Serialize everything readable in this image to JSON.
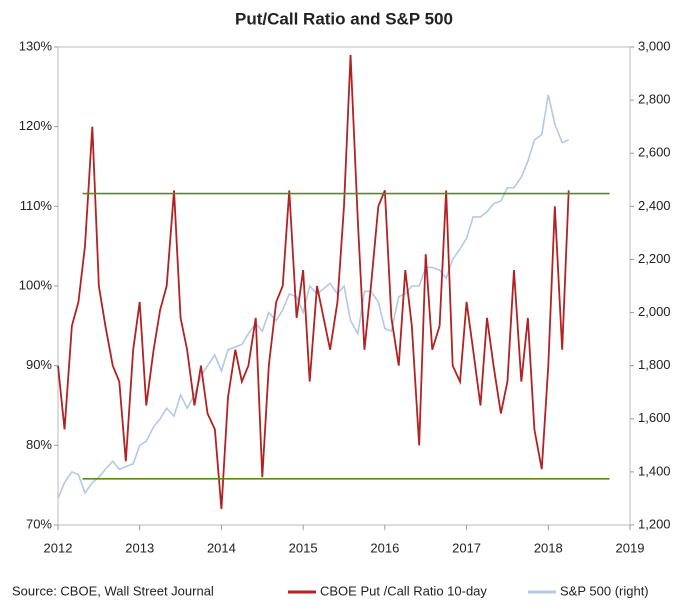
{
  "chart_data": {
    "type": "line",
    "title": "Put/Call Ratio and S&P 500",
    "source": "Source: CBOE, Wall Street Journal",
    "x": [
      2012.0,
      2012.08,
      2012.17,
      2012.25,
      2012.33,
      2012.42,
      2012.5,
      2012.58,
      2012.67,
      2012.75,
      2012.83,
      2012.92,
      2013.0,
      2013.08,
      2013.17,
      2013.25,
      2013.33,
      2013.42,
      2013.5,
      2013.58,
      2013.67,
      2013.75,
      2013.83,
      2013.92,
      2014.0,
      2014.08,
      2014.17,
      2014.25,
      2014.33,
      2014.42,
      2014.5,
      2014.58,
      2014.67,
      2014.75,
      2014.83,
      2014.92,
      2015.0,
      2015.08,
      2015.17,
      2015.25,
      2015.33,
      2015.42,
      2015.5,
      2015.58,
      2015.67,
      2015.75,
      2015.83,
      2015.92,
      2016.0,
      2016.08,
      2016.17,
      2016.25,
      2016.33,
      2016.42,
      2016.5,
      2016.58,
      2016.67,
      2016.75,
      2016.83,
      2016.92,
      2017.0,
      2017.08,
      2017.17,
      2017.25,
      2017.33,
      2017.42,
      2017.5,
      2017.58,
      2017.67,
      2017.75,
      2017.83,
      2017.92,
      2018.0,
      2018.08,
      2018.17,
      2018.25
    ],
    "series": [
      {
        "name": "S&P 500 (right)",
        "color": "#b4c9e6",
        "axis": "y2",
        "values": [
          1300,
          1360,
          1400,
          1390,
          1320,
          1360,
          1380,
          1410,
          1440,
          1410,
          1420,
          1430,
          1500,
          1515,
          1570,
          1600,
          1640,
          1610,
          1690,
          1640,
          1690,
          1760,
          1800,
          1840,
          1780,
          1860,
          1870,
          1880,
          1920,
          1960,
          1930,
          2000,
          1970,
          2010,
          2070,
          2060,
          2000,
          2100,
          2070,
          2090,
          2110,
          2070,
          2100,
          1970,
          1920,
          2080,
          2080,
          2040,
          1940,
          1930,
          2060,
          2070,
          2100,
          2100,
          2170,
          2170,
          2160,
          2130,
          2200,
          2240,
          2280,
          2360,
          2360,
          2380,
          2410,
          2420,
          2470,
          2470,
          2510,
          2570,
          2650,
          2670,
          2820,
          2710,
          2640,
          2650
        ]
      },
      {
        "name": "CBOE Put /Call Ratio 10-day",
        "color": "#b22222",
        "values": [
          90,
          82,
          95,
          98,
          105,
          120,
          100,
          95,
          90,
          88,
          78,
          92,
          98,
          85,
          92,
          97,
          100,
          112,
          96,
          92,
          85,
          90,
          84,
          82,
          72,
          86,
          92,
          88,
          90,
          96,
          76,
          90,
          98,
          100,
          112,
          96,
          102,
          88,
          100,
          96,
          92,
          98,
          110,
          129,
          108,
          92,
          100,
          110,
          112,
          96,
          90,
          102,
          95,
          80,
          104,
          92,
          95,
          112,
          90,
          88,
          98,
          92,
          85,
          96,
          90,
          84,
          88,
          102,
          88,
          96,
          82,
          77,
          90,
          110,
          92,
          112
        ]
      }
    ],
    "hlines": [
      111.6,
      75.8
    ],
    "hline_color": "#5a8a1e",
    "xlim": [
      2012,
      2019
    ],
    "xticks": [
      2012,
      2013,
      2014,
      2015,
      2016,
      2017,
      2018,
      2019
    ],
    "ylim": [
      70,
      130
    ],
    "yticks": [
      {
        "value": 70,
        "label": "70%"
      },
      {
        "value": 80,
        "label": "80%"
      },
      {
        "value": 90,
        "label": "90%"
      },
      {
        "value": 100,
        "label": "100%"
      },
      {
        "value": 110,
        "label": "110%"
      },
      {
        "value": 120,
        "label": "120%"
      },
      {
        "value": 130,
        "label": "130%"
      }
    ],
    "y2lim": [
      1200,
      3000
    ],
    "y2ticks": [
      {
        "value": 1200,
        "label": "1,200"
      },
      {
        "value": 1400,
        "label": "1,400"
      },
      {
        "value": 1600,
        "label": "1,600"
      },
      {
        "value": 1800,
        "label": "1,800"
      },
      {
        "value": 2000,
        "label": "2,000"
      },
      {
        "value": 2200,
        "label": "2,200"
      },
      {
        "value": 2400,
        "label": "2,400"
      },
      {
        "value": 2600,
        "label": "2,600"
      },
      {
        "value": 2800,
        "label": "2,800"
      },
      {
        "value": 3000,
        "label": "3,000"
      }
    ],
    "legend": "bottom"
  }
}
